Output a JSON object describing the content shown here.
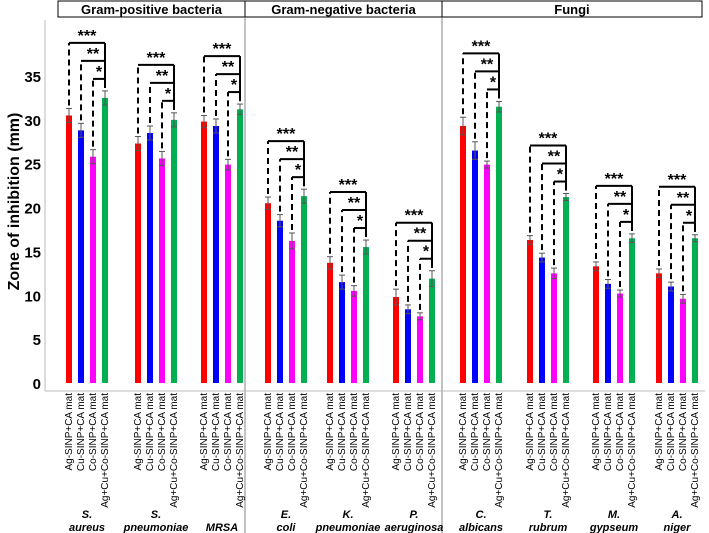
{
  "chart_data": {
    "type": "bar",
    "ylabel": "Zone of inhibition (mm)",
    "ylim": [
      0,
      37
    ],
    "yticks": [
      0,
      5,
      10,
      15,
      20,
      25,
      30,
      35
    ],
    "grid": false,
    "legend": "none",
    "groups": [
      "Gram-positive bacteria",
      "Gram-negative bacteria",
      "Fungi"
    ],
    "group_categories": [
      [
        0,
        1,
        2
      ],
      [
        3,
        4,
        5
      ],
      [
        6,
        7,
        8,
        9
      ]
    ],
    "categories": [
      [
        "S.",
        "aureus"
      ],
      [
        "S.",
        "pneumoniae"
      ],
      [
        "MRSA"
      ],
      [
        "E.",
        "coli"
      ],
      [
        "K.",
        "pneumoniae"
      ],
      [
        "P.",
        "aeruginosa"
      ],
      [
        "C.",
        "albicans"
      ],
      [
        "T.",
        "rubrum"
      ],
      [
        "M.",
        "gypseum"
      ],
      [
        "A.",
        "niger"
      ]
    ],
    "bar_labels": [
      "Ag-SINP+CA mat",
      "Cu-SINP+CA mat",
      "Co-SINP+CA mat",
      "Ag+Cu+Co-SINP+CA mat"
    ],
    "series_colors": [
      "#ff0000",
      "#0000ff",
      "#ff00ff",
      "#00b050"
    ],
    "series": [
      {
        "values": [
          30.5,
          27.3,
          29.8,
          20.5,
          13.7,
          9.8,
          29.3,
          16.3,
          13.3,
          12.5
        ],
        "errors": [
          0.8,
          0.8,
          0.7,
          0.7,
          0.7,
          0.9,
          1.0,
          0.5,
          0.5,
          0.5
        ]
      },
      {
        "values": [
          28.8,
          28.5,
          29.3,
          18.5,
          11.5,
          8.4,
          26.5,
          14.3,
          11.3,
          11.0
        ],
        "errors": [
          0.8,
          0.8,
          0.8,
          0.7,
          0.8,
          0.5,
          1.0,
          0.5,
          0.5,
          0.5
        ]
      },
      {
        "values": [
          25.8,
          25.6,
          24.9,
          16.2,
          10.5,
          7.6,
          24.9,
          12.5,
          10.2,
          9.6
        ],
        "errors": [
          0.8,
          0.8,
          0.6,
          0.9,
          0.6,
          0.4,
          0.4,
          0.6,
          0.4,
          0.5
        ]
      },
      {
        "values": [
          32.5,
          30.0,
          31.2,
          21.3,
          15.5,
          11.9,
          31.5,
          21.2,
          16.5,
          16.5
        ],
        "errors": [
          0.8,
          0.8,
          0.6,
          0.8,
          0.8,
          0.9,
          0.6,
          0.4,
          0.5,
          0.4
        ]
      }
    ],
    "significance": [
      "***",
      "**",
      "*"
    ]
  }
}
